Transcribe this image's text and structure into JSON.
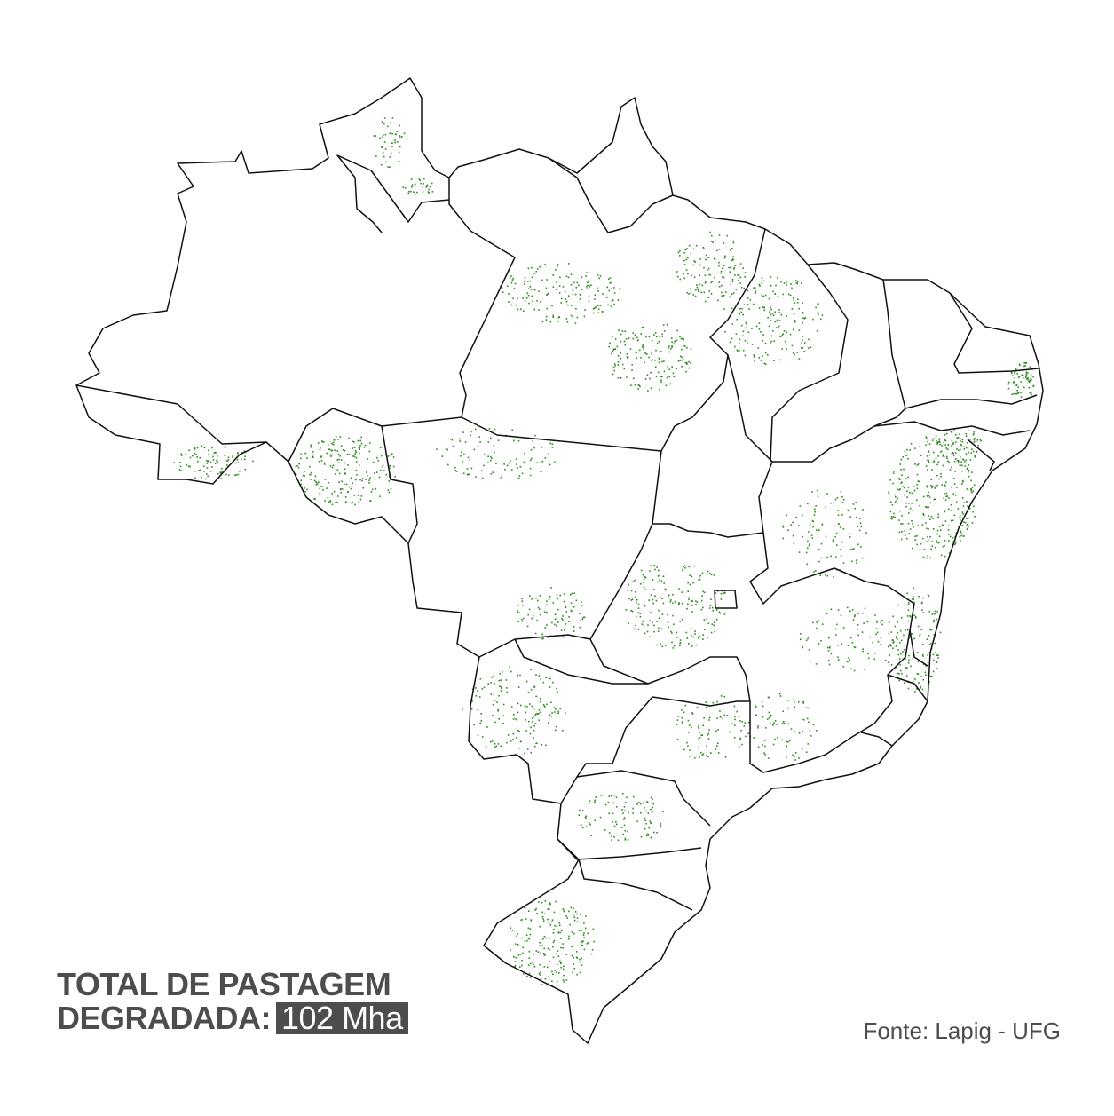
{
  "title": {
    "line1": "TOTAL DE PASTAGEM",
    "line2_prefix": "DEGRADADA:",
    "value": "102 Mha"
  },
  "source": "Fonte: Lapig - UFG",
  "colors": {
    "degraded_pasture": "#2e8b1e",
    "boundary": "#111111",
    "text": "#4d4d4d",
    "background": "#ffffff"
  }
}
